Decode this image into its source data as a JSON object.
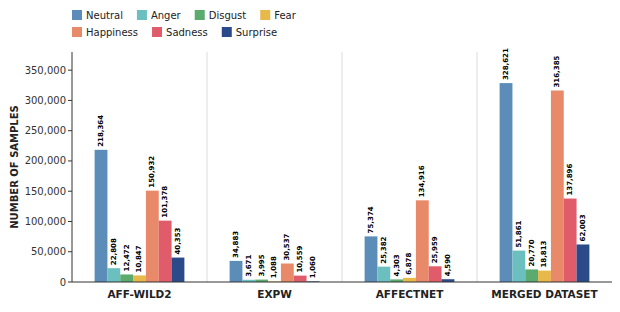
{
  "chart_data": {
    "type": "bar",
    "categories": [
      "AFF-WILD2",
      "EXPW",
      "AFFECTNET",
      "MERGED DATASET"
    ],
    "series": [
      {
        "name": "Neutral",
        "color": "#5B8DB8",
        "values": [
          218364,
          34883,
          75374,
          328621
        ],
        "value_labels": [
          "218,364",
          "34,883",
          "75,374",
          "328,621"
        ]
      },
      {
        "name": "Anger",
        "color": "#6BBFBF",
        "values": [
          22808,
          3671,
          25382,
          51861
        ],
        "value_labels": [
          "22,808",
          "3,671",
          "25,382",
          "51,861"
        ]
      },
      {
        "name": "Disgust",
        "color": "#5BAA6E",
        "values": [
          12472,
          3995,
          4303,
          20770
        ],
        "value_labels": [
          "12,472",
          "3,995",
          "4,303",
          "20,770"
        ]
      },
      {
        "name": "Fear",
        "color": "#E8B84B",
        "values": [
          10847,
          1088,
          6878,
          18813
        ],
        "value_labels": [
          "10,847",
          "1,088",
          "6,878",
          "18,813"
        ]
      },
      {
        "name": "Happiness",
        "color": "#E8896A",
        "values": [
          150932,
          30537,
          134916,
          316385
        ],
        "value_labels": [
          "150,932",
          "30,537",
          "134,916",
          "316,385"
        ]
      },
      {
        "name": "Sadness",
        "color": "#E05C6A",
        "values": [
          101378,
          10559,
          25959,
          137896
        ],
        "value_labels": [
          "101,378",
          "10,559",
          "25,959",
          "137,896"
        ]
      },
      {
        "name": "Surprise",
        "color": "#2B4A8A",
        "values": [
          40353,
          1060,
          4590,
          62003
        ],
        "value_labels": [
          "40,353",
          "1,060",
          "4,590",
          "62,003"
        ]
      }
    ],
    "ylabel": "NUMBER OF SAMPLES",
    "ylim": [
      0,
      380000
    ],
    "yticks": [
      0,
      {
        "value": 50000,
        "label": "50,000"
      },
      {
        "value": 100000,
        "label": "100,000"
      },
      {
        "value": 150000,
        "label": "150,000"
      },
      {
        "value": 200000,
        "label": "200,000"
      },
      {
        "value": 250000,
        "label": "250,000"
      },
      {
        "value": 300000,
        "label": "300,000"
      },
      {
        "value": 350000,
        "label": "350,000"
      }
    ],
    "grid": false,
    "legend": "top",
    "data_labels": true
  }
}
